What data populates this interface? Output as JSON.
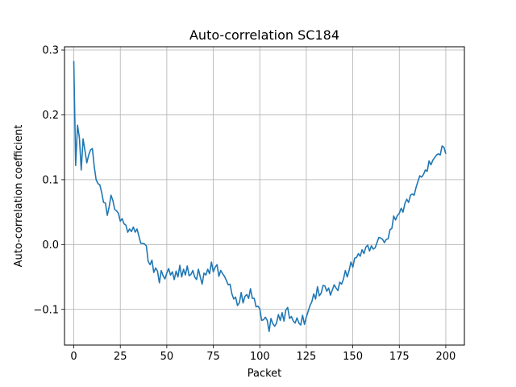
{
  "chart_data": {
    "type": "line",
    "title": "Auto-correlation SC184",
    "xlabel": "Packet",
    "ylabel": "Auto-correlation coefficient",
    "xlim": [
      -5,
      210
    ],
    "ylim": [
      -0.155,
      0.305
    ],
    "xticks": [
      0,
      25,
      50,
      75,
      100,
      125,
      150,
      175,
      200
    ],
    "yticks": [
      -0.1,
      0.0,
      0.1,
      0.2,
      0.3
    ],
    "ytick_labels": [
      "−0.1",
      "0.0",
      "0.1",
      "0.2",
      "0.3"
    ],
    "grid": true,
    "series": [
      {
        "color": "#1f77b4",
        "x": [
          0,
          1,
          2,
          3,
          4,
          5,
          6,
          7,
          8,
          9,
          10,
          11,
          12,
          13,
          14,
          15,
          16,
          17,
          18,
          19,
          20,
          21,
          22,
          23,
          24,
          25,
          26,
          27,
          28,
          29,
          30,
          31,
          32,
          33,
          34,
          35,
          36,
          37,
          38,
          39,
          40,
          41,
          42,
          43,
          44,
          45,
          46,
          47,
          48,
          49,
          50,
          51,
          52,
          53,
          54,
          55,
          56,
          57,
          58,
          59,
          60,
          61,
          62,
          63,
          64,
          65,
          66,
          67,
          68,
          69,
          70,
          71,
          72,
          73,
          74,
          75,
          76,
          77,
          78,
          79,
          80,
          81,
          82,
          83,
          84,
          85,
          86,
          87,
          88,
          89,
          90,
          91,
          92,
          93,
          94,
          95,
          96,
          97,
          98,
          99,
          100,
          101,
          102,
          103,
          104,
          105,
          106,
          107,
          108,
          109,
          110,
          111,
          112,
          113,
          114,
          115,
          116,
          117,
          118,
          119,
          120,
          121,
          122,
          123,
          124,
          125,
          126,
          127,
          128,
          129,
          130,
          131,
          132,
          133,
          134,
          135,
          136,
          137,
          138,
          139,
          140,
          141,
          142,
          143,
          144,
          145,
          146,
          147,
          148,
          149,
          150,
          151,
          152,
          153,
          154,
          155,
          156,
          157,
          158,
          159,
          160,
          161,
          162,
          163,
          164,
          165,
          166,
          167,
          168,
          169,
          170,
          171,
          172,
          173,
          174,
          175,
          176,
          177,
          178,
          179,
          180,
          181,
          182,
          183,
          184,
          185,
          186,
          187,
          188,
          189,
          190,
          191,
          192,
          193,
          194,
          195,
          196,
          197,
          198,
          199,
          200
        ],
        "y": [
          0.283,
          0.122,
          0.184,
          0.165,
          0.115,
          0.163,
          0.145,
          0.126,
          0.138,
          0.146,
          0.148,
          0.12,
          0.1,
          0.094,
          0.092,
          0.08,
          0.065,
          0.064,
          0.045,
          0.058,
          0.076,
          0.068,
          0.054,
          0.052,
          0.048,
          0.036,
          0.04,
          0.032,
          0.03,
          0.019,
          0.024,
          0.02,
          0.027,
          0.019,
          0.024,
          0.013,
          0.002,
          0.002,
          0.001,
          -0.002,
          -0.026,
          -0.031,
          -0.024,
          -0.043,
          -0.036,
          -0.041,
          -0.059,
          -0.04,
          -0.048,
          -0.053,
          -0.044,
          -0.037,
          -0.047,
          -0.042,
          -0.054,
          -0.041,
          -0.05,
          -0.032,
          -0.05,
          -0.038,
          -0.047,
          -0.033,
          -0.048,
          -0.046,
          -0.04,
          -0.05,
          -0.054,
          -0.038,
          -0.05,
          -0.061,
          -0.044,
          -0.047,
          -0.038,
          -0.045,
          -0.027,
          -0.042,
          -0.035,
          -0.031,
          -0.049,
          -0.04,
          -0.045,
          -0.049,
          -0.055,
          -0.062,
          -0.061,
          -0.076,
          -0.084,
          -0.081,
          -0.094,
          -0.09,
          -0.074,
          -0.09,
          -0.08,
          -0.077,
          -0.083,
          -0.068,
          -0.083,
          -0.083,
          -0.096,
          -0.095,
          -0.099,
          -0.117,
          -0.116,
          -0.112,
          -0.117,
          -0.134,
          -0.114,
          -0.122,
          -0.126,
          -0.121,
          -0.108,
          -0.117,
          -0.105,
          -0.118,
          -0.101,
          -0.097,
          -0.114,
          -0.111,
          -0.118,
          -0.121,
          -0.113,
          -0.121,
          -0.124,
          -0.109,
          -0.123,
          -0.112,
          -0.103,
          -0.094,
          -0.088,
          -0.076,
          -0.084,
          -0.065,
          -0.079,
          -0.075,
          -0.063,
          -0.064,
          -0.072,
          -0.067,
          -0.078,
          -0.07,
          -0.062,
          -0.067,
          -0.071,
          -0.058,
          -0.061,
          -0.053,
          -0.04,
          -0.05,
          -0.04,
          -0.027,
          -0.035,
          -0.021,
          -0.02,
          -0.014,
          -0.018,
          -0.008,
          -0.014,
          -0.004,
          -0.001,
          -0.01,
          -0.002,
          -0.007,
          -0.005,
          0.003,
          0.011,
          0.01,
          0.008,
          0.003,
          0.008,
          0.009,
          0.023,
          0.025,
          0.044,
          0.038,
          0.045,
          0.048,
          0.056,
          0.05,
          0.063,
          0.07,
          0.065,
          0.076,
          0.078,
          0.076,
          0.088,
          0.097,
          0.106,
          0.104,
          0.108,
          0.115,
          0.113,
          0.129,
          0.123,
          0.13,
          0.134,
          0.138,
          0.14,
          0.138,
          0.152,
          0.15,
          0.14
        ]
      }
    ]
  }
}
